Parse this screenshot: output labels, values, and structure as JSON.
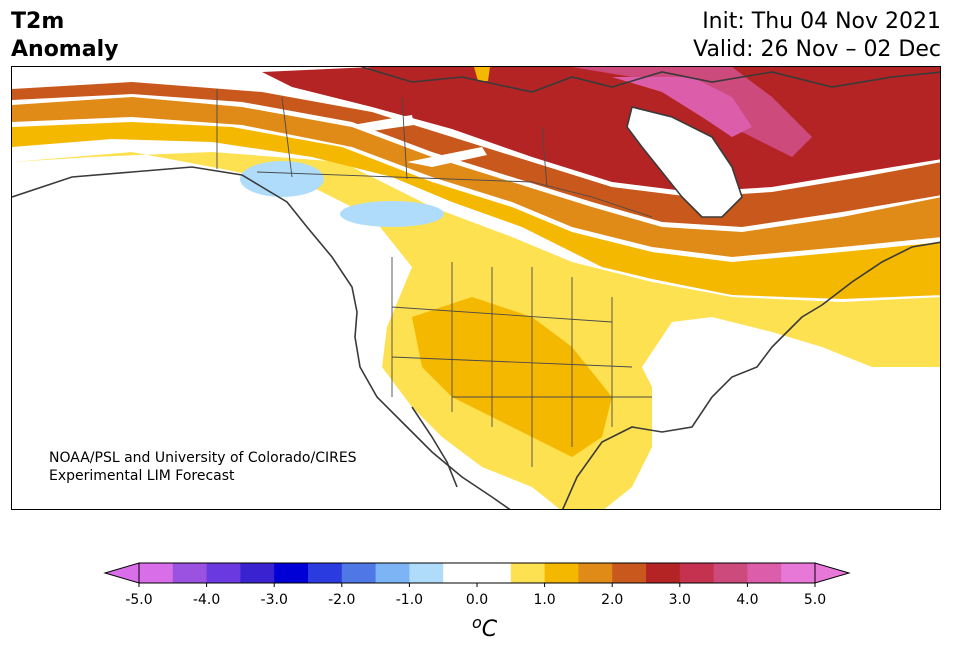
{
  "title": {
    "left_line1": "T2m",
    "left_line2": "Anomaly",
    "init": "Init: Thu 04 Nov 2021",
    "valid": "Valid: 26 Nov – 02 Dec"
  },
  "credit": {
    "line1": "NOAA/PSL and University of Colorado/CIRES",
    "line2": "Experimental LIM Forecast"
  },
  "colorbar": {
    "unit_sup": "o",
    "unit": "C",
    "ticks": [
      "-5.0",
      "-4.0",
      "-3.0",
      "-2.0",
      "-1.0",
      "0.0",
      "1.0",
      "2.0",
      "3.0",
      "4.0",
      "5.0"
    ],
    "colors": [
      "#d86ee8",
      "#9b52e0",
      "#6a3ae0",
      "#3a22d0",
      "#0000d6",
      "#2a3ce0",
      "#4f77e6",
      "#7db4f5",
      "#afdcfb",
      "#ffffff",
      "#ffffff",
      "#fde150",
      "#f5b800",
      "#e08a18",
      "#c8581c",
      "#b42424",
      "#c43250",
      "#cc4a7c",
      "#dc5eaa",
      "#e878d8"
    ],
    "under_color": "#d86ee8",
    "over_color": "#e878d8"
  }
}
